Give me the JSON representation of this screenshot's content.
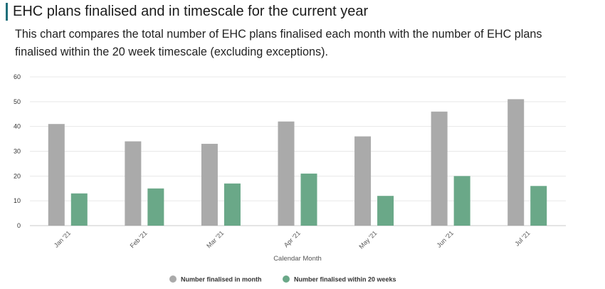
{
  "page": {
    "title": "EHC plans finalised and in timescale for the current year",
    "subtitle": "This chart compares the total number of EHC plans finalised each month with the number of EHC plans finalised within the 20 week timescale (excluding exceptions)."
  },
  "colors": {
    "accent": "#1f6f7a",
    "series_1": "#aaaaaa",
    "series_2": "#6aa888"
  },
  "chart_data": {
    "type": "bar",
    "title": "",
    "xlabel": "Calendar Month",
    "ylabel": "",
    "ylim": [
      0,
      60
    ],
    "yticks": [
      0,
      10,
      20,
      30,
      40,
      50,
      60
    ],
    "grid": true,
    "legend_position": "bottom-center",
    "categories": [
      "Jan '21",
      "Feb '21",
      "Mar '21",
      "Apr '21",
      "May '21",
      "Jun '21",
      "Jul '21"
    ],
    "series": [
      {
        "name": "Number finalised in month",
        "color": "#aaaaaa",
        "values": [
          41,
          34,
          33,
          42,
          36,
          46,
          51
        ]
      },
      {
        "name": "Number finalised within 20 weeks",
        "color": "#6aa888",
        "values": [
          13,
          15,
          17,
          21,
          12,
          20,
          16
        ]
      }
    ]
  }
}
